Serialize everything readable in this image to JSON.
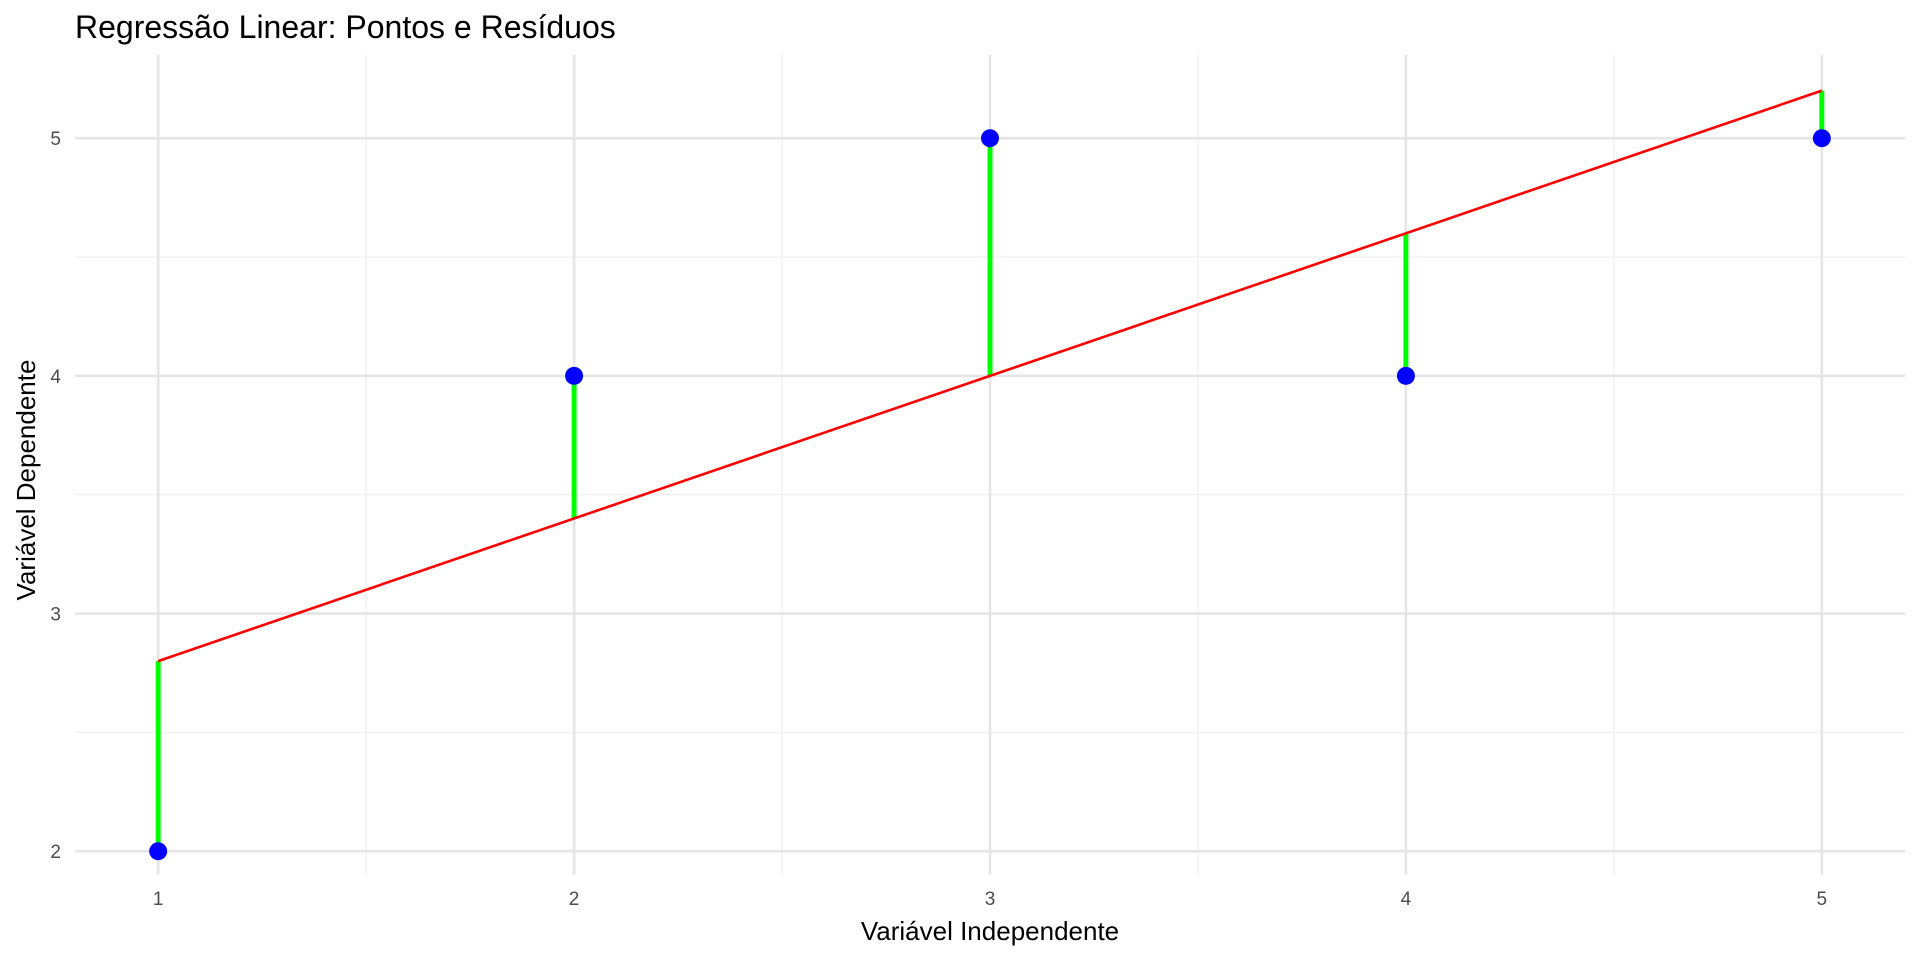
{
  "chart_data": {
    "type": "scatter",
    "title": "Regressão Linear: Pontos e Resíduos",
    "xlabel": "Variável Independente",
    "ylabel": "Variável Dependente",
    "x": [
      1,
      2,
      3,
      4,
      5
    ],
    "y": [
      2,
      4,
      5,
      4,
      5
    ],
    "fitted": [
      2.8,
      3.4,
      4.0,
      4.6,
      5.2
    ],
    "regression_line": {
      "intercept": 2.2,
      "slope": 0.6
    },
    "xlim": [
      0.8,
      5.2
    ],
    "ylim": [
      1.9,
      5.35
    ],
    "x_ticks": [
      1,
      2,
      3,
      4,
      5
    ],
    "y_ticks": [
      2,
      3,
      4,
      5
    ],
    "x_minor_ticks": [
      1.5,
      2.5,
      3.5,
      4.5
    ],
    "y_minor_ticks": [
      2.5,
      3.5,
      4.5
    ],
    "grid": true,
    "legend": "none",
    "colors": {
      "points": "#0000ff",
      "regression_line": "#ff0000",
      "residuals": "#00ff00",
      "grid_major": "#e5e5e5",
      "grid_minor": "#f0f0f0"
    }
  }
}
